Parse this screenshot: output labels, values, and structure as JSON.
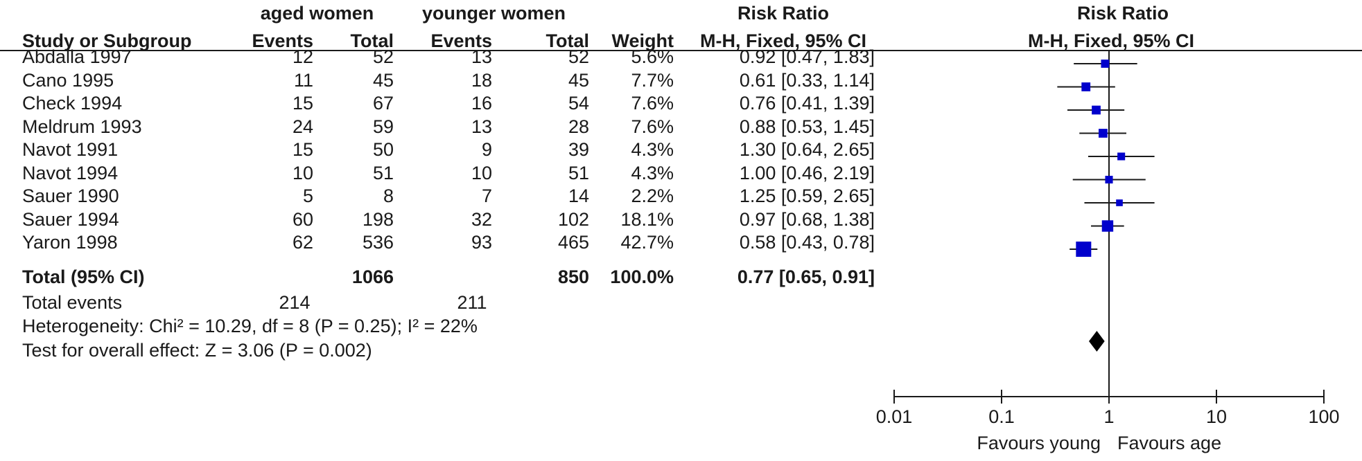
{
  "header": {
    "group1": "aged women",
    "group2": "younger women",
    "rr_col_title": "Risk Ratio",
    "rr_col_method": "M-H, Fixed, 95% CI",
    "plot_title": "Risk Ratio",
    "plot_method": "M-H, Fixed, 95% CI",
    "study_col": "Study or Subgroup",
    "events1": "Events",
    "total1": "Total",
    "events2": "Events",
    "total2": "Total",
    "weight": "Weight"
  },
  "studies": [
    {
      "name": "Abdalla 1997",
      "e1": "12",
      "t1": "52",
      "e2": "13",
      "t2": "52",
      "weight": "5.6%",
      "ci_text": "0.92 [0.47, 1.83]"
    },
    {
      "name": "Cano 1995",
      "e1": "11",
      "t1": "45",
      "e2": "18",
      "t2": "45",
      "weight": "7.7%",
      "ci_text": "0.61 [0.33, 1.14]"
    },
    {
      "name": "Check 1994",
      "e1": "15",
      "t1": "67",
      "e2": "16",
      "t2": "54",
      "weight": "7.6%",
      "ci_text": "0.76 [0.41, 1.39]"
    },
    {
      "name": "Meldrum 1993",
      "e1": "24",
      "t1": "59",
      "e2": "13",
      "t2": "28",
      "weight": "7.6%",
      "ci_text": "0.88 [0.53, 1.45]"
    },
    {
      "name": "Navot 1991",
      "e1": "15",
      "t1": "50",
      "e2": "9",
      "t2": "39",
      "weight": "4.3%",
      "ci_text": "1.30 [0.64, 2.65]"
    },
    {
      "name": "Navot 1994",
      "e1": "10",
      "t1": "51",
      "e2": "10",
      "t2": "51",
      "weight": "4.3%",
      "ci_text": "1.00 [0.46, 2.19]"
    },
    {
      "name": "Sauer 1990",
      "e1": "5",
      "t1": "8",
      "e2": "7",
      "t2": "14",
      "weight": "2.2%",
      "ci_text": "1.25 [0.59, 2.65]"
    },
    {
      "name": "Sauer 1994",
      "e1": "60",
      "t1": "198",
      "e2": "32",
      "t2": "102",
      "weight": "18.1%",
      "ci_text": "0.97 [0.68, 1.38]"
    },
    {
      "name": "Yaron 1998",
      "e1": "62",
      "t1": "536",
      "e2": "93",
      "t2": "465",
      "weight": "42.7%",
      "ci_text": "0.58 [0.43, 0.78]"
    }
  ],
  "total": {
    "label": "Total (95% CI)",
    "t1": "1066",
    "t2": "850",
    "weight": "100.0%",
    "ci_text": "0.77 [0.65, 0.91]"
  },
  "events": {
    "label": "Total events",
    "e1": "214",
    "e2": "211"
  },
  "heterogeneity": "Heterogeneity: Chi² = 10.29, df = 8 (P = 0.25); I² = 22%",
  "overall_effect": "Test for overall effect: Z = 3.06 (P = 0.002)",
  "axis": {
    "ticks": [
      "0.01",
      "0.1",
      "1",
      "10",
      "100"
    ],
    "favours_left": "Favours young",
    "favours_right": "Favours age"
  },
  "colors": {
    "marker": "#0000cc",
    "diamond": "#000000",
    "text": "#1a1a1a"
  },
  "chart_data": {
    "type": "forest",
    "scale": "log",
    "xlim": [
      0.01,
      100
    ],
    "tick_values": [
      0.01,
      0.1,
      1,
      10,
      100
    ],
    "reference_line": 1,
    "studies": [
      {
        "name": "Abdalla 1997",
        "rr": 0.92,
        "lo": 0.47,
        "hi": 1.83,
        "weight": 5.6
      },
      {
        "name": "Cano 1995",
        "rr": 0.61,
        "lo": 0.33,
        "hi": 1.14,
        "weight": 7.7
      },
      {
        "name": "Check 1994",
        "rr": 0.76,
        "lo": 0.41,
        "hi": 1.39,
        "weight": 7.6
      },
      {
        "name": "Meldrum 1993",
        "rr": 0.88,
        "lo": 0.53,
        "hi": 1.45,
        "weight": 7.6
      },
      {
        "name": "Navot 1991",
        "rr": 1.3,
        "lo": 0.64,
        "hi": 2.65,
        "weight": 4.3
      },
      {
        "name": "Navot 1994",
        "rr": 1.0,
        "lo": 0.46,
        "hi": 2.19,
        "weight": 4.3
      },
      {
        "name": "Sauer 1990",
        "rr": 1.25,
        "lo": 0.59,
        "hi": 2.65,
        "weight": 2.2
      },
      {
        "name": "Sauer 1994",
        "rr": 0.97,
        "lo": 0.68,
        "hi": 1.38,
        "weight": 18.1
      },
      {
        "name": "Yaron 1998",
        "rr": 0.58,
        "lo": 0.43,
        "hi": 0.78,
        "weight": 42.7
      }
    ],
    "pooled": {
      "name": "Total (95% CI)",
      "rr": 0.77,
      "lo": 0.65,
      "hi": 0.91
    }
  }
}
